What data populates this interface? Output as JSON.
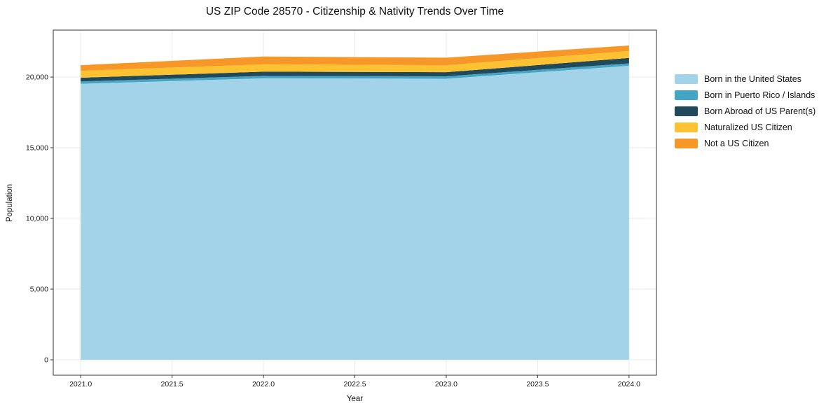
{
  "figure": {
    "title": "US ZIP Code 28570 - Citizenship & Nativity Trends Over Time",
    "xlabel": "Year",
    "ylabel": "Population"
  },
  "chart_data": {
    "type": "area",
    "stacked": true,
    "title": "US ZIP Code 28570 - Citizenship & Nativity Trends Over Time",
    "xlabel": "Year",
    "ylabel": "Population",
    "x": [
      2021,
      2022,
      2023,
      2024
    ],
    "series": [
      {
        "name": "Born in the United States",
        "color": "#a3d3e8",
        "values": [
          19520,
          19910,
          19880,
          20800
        ]
      },
      {
        "name": "Born in Puerto Rico / Islands",
        "color": "#44a6c4",
        "values": [
          170,
          170,
          170,
          170
        ]
      },
      {
        "name": "Born Abroad of US Parent(s)",
        "color": "#20495c",
        "values": [
          260,
          300,
          290,
          380
        ]
      },
      {
        "name": "Naturalized US Citizen",
        "color": "#fcc231",
        "values": [
          490,
          520,
          500,
          490
        ]
      },
      {
        "name": "Not a US Citizen",
        "color": "#f79728",
        "values": [
          400,
          550,
          530,
          390
        ]
      }
    ],
    "stacked_totals": [
      20840,
      21450,
      21370,
      22230
    ],
    "xticks": [
      2021.0,
      2021.5,
      2022.0,
      2022.5,
      2023.0,
      2023.5,
      2024.0
    ],
    "yticks": [
      0,
      5000,
      10000,
      15000,
      20000
    ],
    "xlim": [
      2020.85,
      2024.15
    ],
    "ylim": [
      -1090,
      23320
    ],
    "grid": true,
    "legend_position": "right-outside"
  },
  "style": {
    "background": "#ffffff",
    "grid_color": "#eaeaea",
    "spine_color": "#333333",
    "tick_color": "#333333",
    "text_color": "#1a1a1a"
  }
}
